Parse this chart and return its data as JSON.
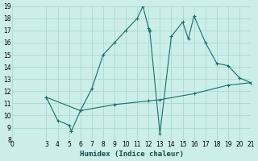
{
  "xlabel": "Humidex (Indice chaleur)",
  "bg_color": "#cceee8",
  "grid_color": "#aad8d2",
  "line_color": "#1a6b6b",
  "xlim": [
    0,
    21
  ],
  "ylim": [
    8,
    19
  ],
  "xticks": [
    0,
    3,
    4,
    5,
    6,
    7,
    8,
    9,
    10,
    11,
    12,
    13,
    14,
    15,
    16,
    17,
    18,
    19,
    20,
    21
  ],
  "yticks": [
    8,
    9,
    10,
    11,
    12,
    13,
    14,
    15,
    16,
    17,
    18,
    19
  ],
  "curve1_x": [
    3,
    4,
    5,
    5.2,
    6,
    7,
    8,
    9,
    10,
    11,
    11.5,
    12,
    12.05,
    12.1,
    13,
    14,
    15,
    15.5,
    16,
    17,
    18,
    19,
    20,
    21
  ],
  "curve1_y": [
    11.5,
    9.6,
    9.2,
    8.7,
    10.4,
    12.2,
    15.0,
    16.0,
    17.0,
    18.0,
    19.0,
    17.2,
    17.0,
    17.0,
    8.5,
    16.5,
    17.7,
    16.3,
    18.2,
    16.0,
    14.3,
    14.1,
    13.1,
    12.7
  ],
  "curve2_x": [
    3,
    6,
    9,
    12,
    13,
    16,
    19,
    21
  ],
  "curve2_y": [
    11.5,
    10.4,
    10.9,
    11.2,
    11.3,
    11.8,
    12.5,
    12.7
  ]
}
